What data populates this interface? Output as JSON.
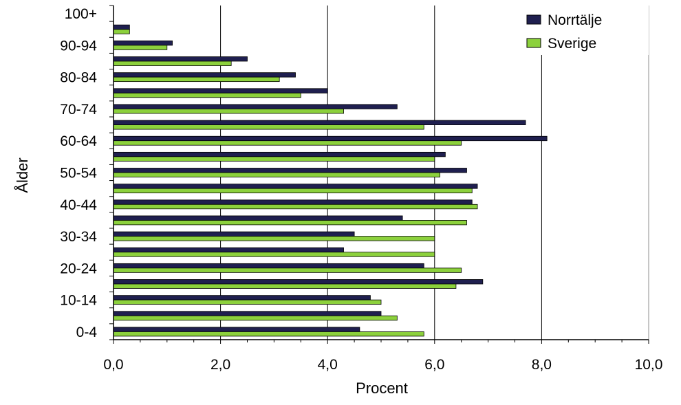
{
  "chart_data": {
    "type": "bar",
    "orientation": "horizontal",
    "title": "",
    "xlabel": "Procent",
    "ylabel": "Ålder",
    "xlim": [
      0,
      10
    ],
    "x_ticks": [
      "0,0",
      "2,0",
      "4,0",
      "6,0",
      "8,0",
      "10,0"
    ],
    "x_tick_values": [
      0,
      2,
      4,
      6,
      8,
      10
    ],
    "categories": [
      "0-4",
      "5-9",
      "10-14",
      "15-19",
      "20-24",
      "25-29",
      "30-34",
      "35-39",
      "40-44",
      "45-49",
      "50-54",
      "55-59",
      "60-64",
      "65-69",
      "70-74",
      "75-79",
      "80-84",
      "85-89",
      "90-94",
      "95-99",
      "100+"
    ],
    "category_labels_shown": [
      "0-4",
      "10-14",
      "20-24",
      "30-34",
      "40-44",
      "50-54",
      "60-64",
      "70-74",
      "80-84",
      "90-94",
      "100+"
    ],
    "series": [
      {
        "name": "Norrtälje",
        "color": "#1f1f4f",
        "values": [
          4.6,
          5.0,
          4.8,
          6.9,
          5.8,
          4.3,
          4.5,
          5.4,
          6.7,
          6.8,
          6.6,
          6.2,
          8.1,
          7.7,
          5.3,
          4.0,
          3.4,
          2.5,
          1.1,
          0.3,
          0.0
        ]
      },
      {
        "name": "Sverige",
        "color": "#8cd13c",
        "values": [
          5.8,
          5.3,
          5.0,
          6.4,
          6.5,
          6.0,
          6.0,
          6.6,
          6.8,
          6.7,
          6.1,
          6.0,
          6.5,
          5.8,
          4.3,
          3.5,
          3.1,
          2.2,
          1.0,
          0.3,
          0.0
        ]
      }
    ],
    "grid": {
      "vertical": true,
      "horizontal": false
    },
    "legend_position": "top-right"
  }
}
